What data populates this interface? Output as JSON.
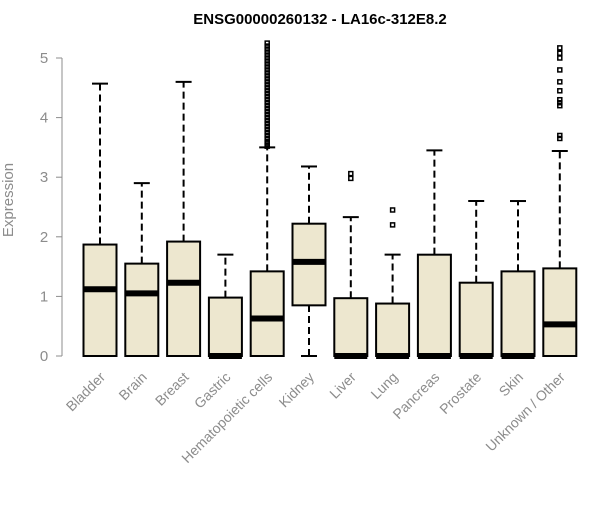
{
  "chart_data": {
    "type": "boxplot",
    "title": "ENSG00000260132 - LA16c-312E8.2",
    "xlabel": "",
    "ylabel": "Expression",
    "ylim": [
      0,
      5.25
    ],
    "yticks": [
      0,
      1,
      2,
      3,
      4,
      5
    ],
    "grid": false,
    "legend": "none",
    "colors": {
      "box_fill": "#EDE7CF",
      "stroke": "#000000",
      "axis_text": "#8c8c8c"
    },
    "categories": [
      "Bladder",
      "Brain",
      "Breast",
      "Gastric",
      "Hematopoietic cells",
      "Kidney",
      "Liver",
      "Lung",
      "Pancreas",
      "Prostate",
      "Skin",
      "Unknown / Other"
    ],
    "boxes": [
      {
        "min": 0,
        "q1": 0,
        "median": 1.12,
        "q3": 1.87,
        "max": 4.57,
        "outliers": []
      },
      {
        "min": 0,
        "q1": 0,
        "median": 1.05,
        "q3": 1.55,
        "max": 2.9,
        "outliers": []
      },
      {
        "min": 0,
        "q1": 0,
        "median": 1.23,
        "q3": 1.92,
        "max": 4.6,
        "outliers": []
      },
      {
        "min": 0,
        "q1": 0,
        "median": 0,
        "q3": 0.98,
        "max": 1.7,
        "outliers": []
      },
      {
        "min": 0,
        "q1": 0,
        "median": 0.63,
        "q3": 1.42,
        "max": 3.5,
        "outliers": [
          3.52,
          3.56,
          3.6,
          3.65,
          3.7,
          3.75,
          3.8,
          3.85,
          3.9,
          3.95,
          4.0,
          4.05,
          4.1,
          4.15,
          4.2,
          4.25,
          4.3,
          4.35,
          4.4,
          4.45,
          4.5,
          4.55,
          4.6,
          4.65,
          4.7,
          4.75,
          4.8,
          4.85,
          4.9,
          4.95,
          5.0,
          5.05,
          5.1,
          5.15,
          5.2,
          5.25
        ]
      },
      {
        "min": 0,
        "q1": 0.85,
        "median": 1.58,
        "q3": 2.22,
        "max": 3.18,
        "outliers": []
      },
      {
        "min": 0,
        "q1": 0,
        "median": 0,
        "q3": 0.97,
        "max": 2.33,
        "outliers": [
          2.98,
          3.06
        ]
      },
      {
        "min": 0,
        "q1": 0,
        "median": 0,
        "q3": 0.88,
        "max": 1.7,
        "outliers": [
          2.2,
          2.45
        ]
      },
      {
        "min": 0,
        "q1": 0,
        "median": 0,
        "q3": 1.7,
        "max": 3.45,
        "outliers": []
      },
      {
        "min": 0,
        "q1": 0,
        "median": 0,
        "q3": 1.23,
        "max": 2.6,
        "outliers": []
      },
      {
        "min": 0,
        "q1": 0,
        "median": 0,
        "q3": 1.42,
        "max": 2.6,
        "outliers": []
      },
      {
        "min": 0,
        "q1": 0,
        "median": 0.53,
        "q3": 1.47,
        "max": 3.44,
        "outliers": [
          3.65,
          3.7,
          4.2,
          4.25,
          4.3,
          4.45,
          4.6,
          4.8,
          5.0,
          5.08,
          5.17
        ]
      }
    ]
  }
}
